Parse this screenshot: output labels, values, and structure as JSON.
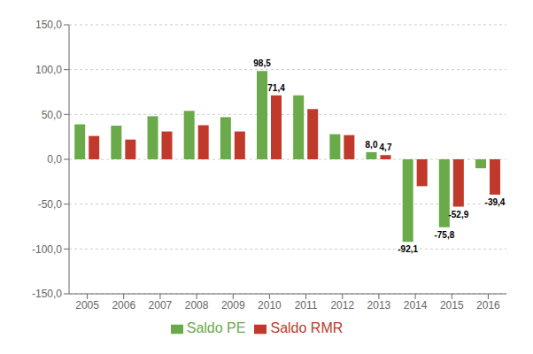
{
  "chart_data": {
    "type": "bar",
    "categories": [
      "2005",
      "2006",
      "2007",
      "2008",
      "2009",
      "2010",
      "2011",
      "2012",
      "2013",
      "2014",
      "2015",
      "2016"
    ],
    "series": [
      {
        "name": "Saldo PE",
        "color": "#6aaa4a",
        "values": [
          39.0,
          37.5,
          48.0,
          54.0,
          47.0,
          98.5,
          71.4,
          28.0,
          8.0,
          -92.1,
          -75.8,
          -10.0
        ],
        "value_labels": [
          null,
          null,
          null,
          null,
          null,
          "98,5",
          null,
          null,
          "8,0",
          "-92,1",
          "-75,8",
          null
        ]
      },
      {
        "name": "Saldo RMR",
        "color": "#c0392b",
        "values": [
          26.0,
          22.0,
          31.0,
          38.0,
          31.0,
          71.4,
          56.0,
          27.0,
          4.7,
          -30.0,
          -52.9,
          -39.4
        ],
        "value_labels": [
          null,
          null,
          null,
          null,
          null,
          "71,4",
          null,
          null,
          "4,7",
          null,
          "-52,9",
          "-39,4"
        ]
      }
    ],
    "ylim": [
      -150,
      150
    ],
    "yticks": [
      {
        "value": -150,
        "label": "-150,0"
      },
      {
        "value": -100,
        "label": "-100,0"
      },
      {
        "value": -50,
        "label": "-50,0"
      },
      {
        "value": 0,
        "label": "0,0"
      },
      {
        "value": 50,
        "label": "50,0"
      },
      {
        "value": 100,
        "label": "100,0"
      },
      {
        "value": 150,
        "label": "150,0"
      }
    ],
    "grid": true,
    "legend": "bottom",
    "data_labels": true
  }
}
